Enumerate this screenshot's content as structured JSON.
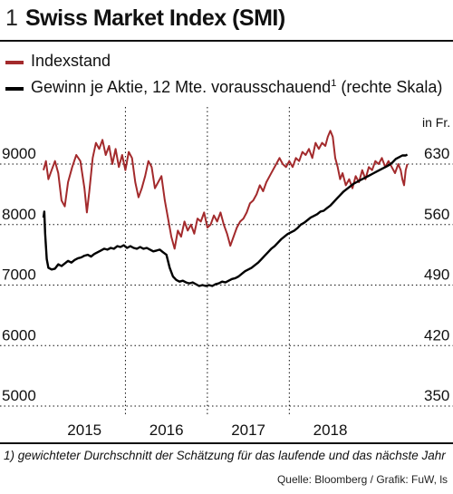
{
  "header": {
    "number": "1",
    "title": "Swiss Market Index (SMI)"
  },
  "legend": [
    {
      "label": "Indexstand",
      "color": "#a32a2c"
    },
    {
      "label": "Gewinn je Aktie, 12 Mte. vorausschauend",
      "sup": "1",
      "suffix": "(rechte Skala)",
      "color": "#000000"
    }
  ],
  "footnote": "1) gewichteter Durchschnitt der Schätzung für das laufende und das nächste Jahr",
  "source": "Quelle: Bloomberg / Grafik: FuW, ls",
  "chart_data": {
    "type": "line",
    "x_unit": "year (decimal)",
    "xlim": [
      2014.5,
      2019.0
    ],
    "x_tick_labels": [
      {
        "label": "2015",
        "x": 2015.0
      },
      {
        "label": "2016",
        "x": 2016.0
      },
      {
        "label": "2017",
        "x": 2017.0
      },
      {
        "label": "2018",
        "x": 2018.0
      }
    ],
    "year_separators": [
      2015.5,
      2016.5,
      2017.5
    ],
    "left_axis": {
      "ylim": [
        5000,
        10000
      ],
      "ticks": [
        5000,
        6000,
        7000,
        8000,
        9000
      ]
    },
    "right_axis": {
      "unit_label": "in Fr.",
      "ylim": [
        350,
        700
      ],
      "ticks": [
        350,
        420,
        490,
        560,
        630
      ]
    },
    "grid": "horizontal dotted",
    "series": [
      {
        "name": "Indexstand",
        "axis": "left",
        "color": "#a32a2c",
        "points": [
          [
            2014.5,
            8900
          ],
          [
            2014.53,
            9050
          ],
          [
            2014.56,
            8750
          ],
          [
            2014.6,
            8900
          ],
          [
            2014.64,
            9050
          ],
          [
            2014.68,
            8850
          ],
          [
            2014.72,
            8400
          ],
          [
            2014.76,
            8300
          ],
          [
            2014.8,
            8700
          ],
          [
            2014.85,
            8950
          ],
          [
            2014.9,
            9150
          ],
          [
            2014.95,
            9050
          ],
          [
            2015.0,
            8600
          ],
          [
            2015.03,
            8200
          ],
          [
            2015.06,
            8550
          ],
          [
            2015.1,
            9100
          ],
          [
            2015.14,
            9350
          ],
          [
            2015.18,
            9250
          ],
          [
            2015.22,
            9400
          ],
          [
            2015.26,
            9150
          ],
          [
            2015.3,
            9300
          ],
          [
            2015.34,
            9000
          ],
          [
            2015.38,
            9250
          ],
          [
            2015.42,
            8950
          ],
          [
            2015.46,
            9150
          ],
          [
            2015.5,
            8900
          ],
          [
            2015.54,
            9200
          ],
          [
            2015.58,
            9100
          ],
          [
            2015.62,
            8700
          ],
          [
            2015.66,
            8450
          ],
          [
            2015.7,
            8600
          ],
          [
            2015.74,
            8800
          ],
          [
            2015.78,
            9050
          ],
          [
            2015.82,
            8950
          ],
          [
            2015.86,
            8600
          ],
          [
            2015.9,
            8700
          ],
          [
            2015.94,
            8800
          ],
          [
            2015.98,
            8400
          ],
          [
            2016.02,
            8100
          ],
          [
            2016.06,
            7800
          ],
          [
            2016.1,
            7600
          ],
          [
            2016.14,
            7900
          ],
          [
            2016.18,
            7800
          ],
          [
            2016.22,
            8050
          ],
          [
            2016.26,
            7900
          ],
          [
            2016.3,
            8000
          ],
          [
            2016.34,
            7850
          ],
          [
            2016.38,
            8100
          ],
          [
            2016.42,
            8050
          ],
          [
            2016.46,
            8200
          ],
          [
            2016.5,
            7950
          ],
          [
            2016.54,
            8000
          ],
          [
            2016.58,
            8150
          ],
          [
            2016.62,
            8050
          ],
          [
            2016.66,
            8200
          ],
          [
            2016.7,
            8000
          ],
          [
            2016.74,
            7850
          ],
          [
            2016.78,
            7650
          ],
          [
            2016.82,
            7800
          ],
          [
            2016.86,
            7950
          ],
          [
            2016.9,
            8050
          ],
          [
            2016.94,
            8100
          ],
          [
            2016.98,
            8200
          ],
          [
            2017.02,
            8350
          ],
          [
            2017.06,
            8400
          ],
          [
            2017.1,
            8500
          ],
          [
            2017.14,
            8650
          ],
          [
            2017.18,
            8550
          ],
          [
            2017.22,
            8700
          ],
          [
            2017.26,
            8800
          ],
          [
            2017.3,
            8900
          ],
          [
            2017.34,
            9000
          ],
          [
            2017.38,
            9100
          ],
          [
            2017.42,
            9000
          ],
          [
            2017.46,
            8950
          ],
          [
            2017.5,
            9050
          ],
          [
            2017.54,
            8950
          ],
          [
            2017.58,
            9100
          ],
          [
            2017.62,
            9050
          ],
          [
            2017.66,
            9200
          ],
          [
            2017.7,
            9150
          ],
          [
            2017.74,
            9250
          ],
          [
            2017.78,
            9100
          ],
          [
            2017.82,
            9350
          ],
          [
            2017.86,
            9250
          ],
          [
            2017.9,
            9350
          ],
          [
            2017.94,
            9300
          ],
          [
            2017.97,
            9450
          ],
          [
            2018.0,
            9550
          ],
          [
            2018.03,
            9450
          ],
          [
            2018.06,
            9100
          ],
          [
            2018.09,
            8950
          ],
          [
            2018.12,
            8750
          ],
          [
            2018.15,
            8850
          ],
          [
            2018.19,
            8650
          ],
          [
            2018.23,
            8750
          ],
          [
            2018.27,
            8600
          ],
          [
            2018.31,
            8800
          ],
          [
            2018.35,
            8700
          ],
          [
            2018.39,
            8900
          ],
          [
            2018.43,
            8750
          ],
          [
            2018.47,
            8950
          ],
          [
            2018.51,
            8900
          ],
          [
            2018.55,
            9050
          ],
          [
            2018.59,
            9000
          ],
          [
            2018.63,
            9100
          ],
          [
            2018.67,
            8950
          ],
          [
            2018.71,
            9050
          ],
          [
            2018.75,
            8950
          ],
          [
            2018.79,
            8850
          ],
          [
            2018.83,
            9000
          ],
          [
            2018.86,
            8900
          ],
          [
            2018.88,
            8750
          ],
          [
            2018.9,
            8650
          ],
          [
            2018.92,
            8900
          ],
          [
            2018.94,
            9000
          ]
        ]
      },
      {
        "name": "Gewinn je Aktie, 12 Mte. vorausschauend",
        "axis": "right",
        "color": "#000000",
        "points": [
          [
            2014.5,
            568
          ],
          [
            2014.51,
            575
          ],
          [
            2014.52,
            550
          ],
          [
            2014.54,
            520
          ],
          [
            2014.56,
            510
          ],
          [
            2014.6,
            508
          ],
          [
            2014.64,
            509
          ],
          [
            2014.68,
            514
          ],
          [
            2014.72,
            512
          ],
          [
            2014.76,
            515
          ],
          [
            2014.8,
            518
          ],
          [
            2014.84,
            516
          ],
          [
            2014.88,
            519
          ],
          [
            2014.92,
            521
          ],
          [
            2014.96,
            522
          ],
          [
            2015.0,
            524
          ],
          [
            2015.04,
            525
          ],
          [
            2015.08,
            523
          ],
          [
            2015.12,
            526
          ],
          [
            2015.16,
            528
          ],
          [
            2015.2,
            530
          ],
          [
            2015.24,
            532
          ],
          [
            2015.28,
            531
          ],
          [
            2015.32,
            533
          ],
          [
            2015.36,
            532
          ],
          [
            2015.4,
            535
          ],
          [
            2015.44,
            534
          ],
          [
            2015.48,
            536
          ],
          [
            2015.52,
            533
          ],
          [
            2015.56,
            535
          ],
          [
            2015.6,
            533
          ],
          [
            2015.64,
            532
          ],
          [
            2015.68,
            534
          ],
          [
            2015.72,
            532
          ],
          [
            2015.76,
            533
          ],
          [
            2015.8,
            531
          ],
          [
            2015.84,
            529
          ],
          [
            2015.88,
            530
          ],
          [
            2015.92,
            531
          ],
          [
            2015.96,
            528
          ],
          [
            2016.0,
            525
          ],
          [
            2016.04,
            510
          ],
          [
            2016.08,
            500
          ],
          [
            2016.12,
            496
          ],
          [
            2016.16,
            494
          ],
          [
            2016.2,
            495
          ],
          [
            2016.24,
            493
          ],
          [
            2016.28,
            492
          ],
          [
            2016.32,
            493
          ],
          [
            2016.36,
            491
          ],
          [
            2016.4,
            489
          ],
          [
            2016.44,
            490
          ],
          [
            2016.48,
            489
          ],
          [
            2016.52,
            490
          ],
          [
            2016.56,
            489
          ],
          [
            2016.6,
            491
          ],
          [
            2016.64,
            492
          ],
          [
            2016.68,
            494
          ],
          [
            2016.72,
            493
          ],
          [
            2016.76,
            495
          ],
          [
            2016.8,
            497
          ],
          [
            2016.84,
            498
          ],
          [
            2016.88,
            500
          ],
          [
            2016.92,
            503
          ],
          [
            2016.96,
            506
          ],
          [
            2017.0,
            508
          ],
          [
            2017.04,
            510
          ],
          [
            2017.08,
            513
          ],
          [
            2017.12,
            516
          ],
          [
            2017.16,
            520
          ],
          [
            2017.2,
            524
          ],
          [
            2017.24,
            528
          ],
          [
            2017.28,
            532
          ],
          [
            2017.32,
            535
          ],
          [
            2017.36,
            539
          ],
          [
            2017.4,
            543
          ],
          [
            2017.44,
            546
          ],
          [
            2017.48,
            549
          ],
          [
            2017.52,
            551
          ],
          [
            2017.56,
            553
          ],
          [
            2017.6,
            556
          ],
          [
            2017.64,
            560
          ],
          [
            2017.68,
            562
          ],
          [
            2017.72,
            565
          ],
          [
            2017.76,
            568
          ],
          [
            2017.8,
            570
          ],
          [
            2017.84,
            572
          ],
          [
            2017.88,
            575
          ],
          [
            2017.92,
            576
          ],
          [
            2017.96,
            579
          ],
          [
            2018.0,
            582
          ],
          [
            2018.04,
            586
          ],
          [
            2018.08,
            590
          ],
          [
            2018.12,
            594
          ],
          [
            2018.16,
            598
          ],
          [
            2018.2,
            601
          ],
          [
            2018.24,
            604
          ],
          [
            2018.28,
            607
          ],
          [
            2018.32,
            609
          ],
          [
            2018.36,
            611
          ],
          [
            2018.4,
            613
          ],
          [
            2018.44,
            615
          ],
          [
            2018.48,
            617
          ],
          [
            2018.52,
            619
          ],
          [
            2018.56,
            621
          ],
          [
            2018.6,
            623
          ],
          [
            2018.64,
            625
          ],
          [
            2018.68,
            627
          ],
          [
            2018.72,
            629
          ],
          [
            2018.76,
            632
          ],
          [
            2018.8,
            636
          ],
          [
            2018.84,
            638
          ],
          [
            2018.88,
            640
          ],
          [
            2018.92,
            640
          ],
          [
            2018.94,
            641
          ]
        ]
      }
    ]
  }
}
